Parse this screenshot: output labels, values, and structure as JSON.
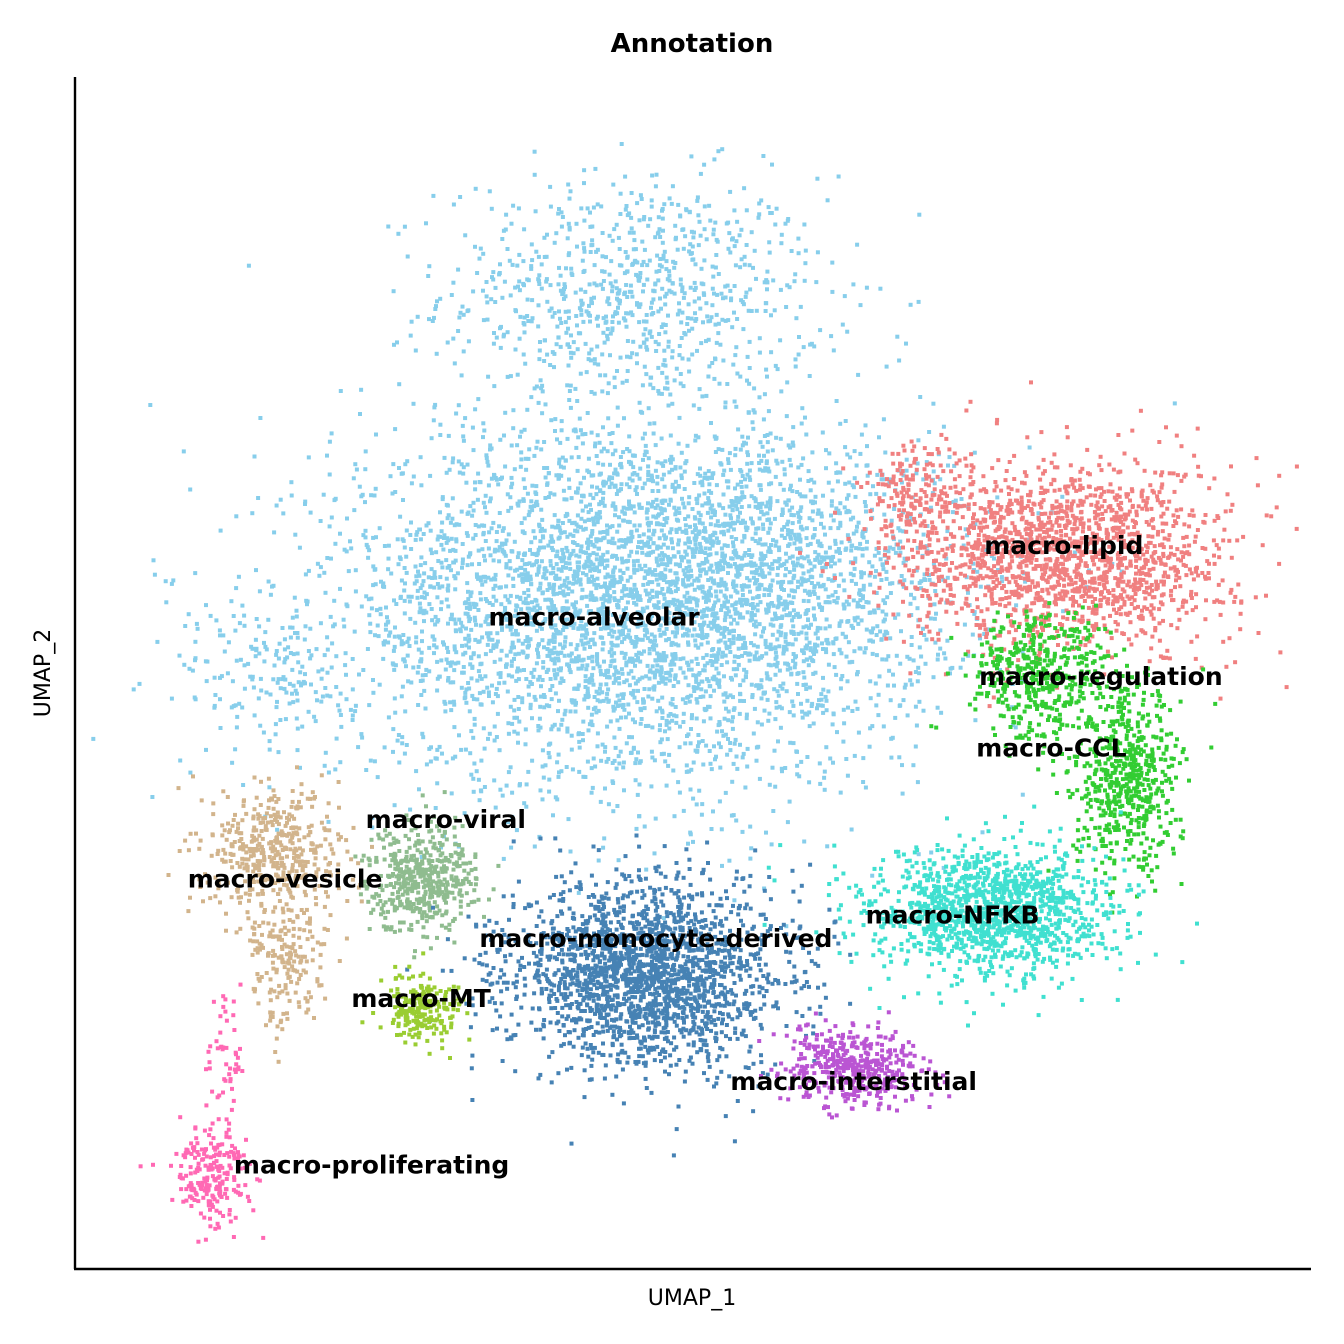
{
  "chart_data": {
    "type": "scatter",
    "title": "Annotation",
    "xlabel": "UMAP_1",
    "ylabel": "UMAP_2",
    "axis_ticks": "none",
    "grid": false,
    "legend": "none (labels placed on clusters)",
    "xlim": [
      0,
      100
    ],
    "ylim": [
      0,
      100
    ],
    "clusters": [
      {
        "name": "macro-alveolar",
        "color": "#87CEEB",
        "label_x": 42,
        "label_y": 54,
        "blobs": [
          [
            45,
            82,
            14,
            9,
            0.22
          ],
          [
            45,
            56,
            22,
            14,
            0.45
          ],
          [
            16,
            50,
            7,
            6,
            0.12
          ],
          [
            56,
            60,
            14,
            9,
            0.15
          ]
        ]
      },
      {
        "name": "macro-lipid",
        "color": "#F08080",
        "label_x": 80,
        "label_y": 60,
        "blobs": [
          [
            80,
            60,
            12,
            7,
            0.7
          ],
          [
            68,
            65,
            4,
            4,
            0.3
          ]
        ]
      },
      {
        "name": "macro-regulation",
        "color": "#32CD32",
        "label_x": 83,
        "label_y": 49,
        "blobs": [
          [
            78,
            50,
            5,
            5,
            0.6
          ]
        ]
      },
      {
        "name": "macro-CCL",
        "color": "#32CD32",
        "label_x": 79,
        "label_y": 43,
        "blobs": [
          [
            85,
            41,
            4,
            7,
            0.7
          ]
        ]
      },
      {
        "name": "macro-viral",
        "color": "#8FBC8F",
        "label_x": 30,
        "label_y": 37,
        "blobs": [
          [
            28,
            33,
            4,
            4,
            1
          ]
        ]
      },
      {
        "name": "macro-vesicle",
        "color": "#D2B48C",
        "label_x": 17,
        "label_y": 32,
        "blobs": [
          [
            16,
            35,
            5,
            5,
            0.6
          ],
          [
            17,
            26,
            3,
            5,
            0.4
          ]
        ]
      },
      {
        "name": "macro-monocyte-derived",
        "color": "#4682B4",
        "label_x": 47,
        "label_y": 27,
        "blobs": [
          [
            46,
            25,
            10,
            7,
            1
          ]
        ]
      },
      {
        "name": "macro-NFKB",
        "color": "#40E0D0",
        "label_x": 71,
        "label_y": 29,
        "blobs": [
          [
            74,
            30,
            9,
            5,
            1
          ]
        ]
      },
      {
        "name": "macro-MT",
        "color": "#9ACD32",
        "label_x": 28,
        "label_y": 22,
        "blobs": [
          [
            28,
            22,
            3,
            2.5,
            1
          ]
        ]
      },
      {
        "name": "macro-interstitial",
        "color": "#BA55D3",
        "label_x": 63,
        "label_y": 15,
        "blobs": [
          [
            63,
            17,
            5,
            3,
            1
          ]
        ]
      },
      {
        "name": "macro-proliferating",
        "color": "#FF69B4",
        "label_x": 24,
        "label_y": 8,
        "blobs": [
          [
            11,
            8,
            3,
            3.5,
            0.7
          ],
          [
            12,
            18,
            1.2,
            5,
            0.3
          ]
        ]
      }
    ]
  }
}
